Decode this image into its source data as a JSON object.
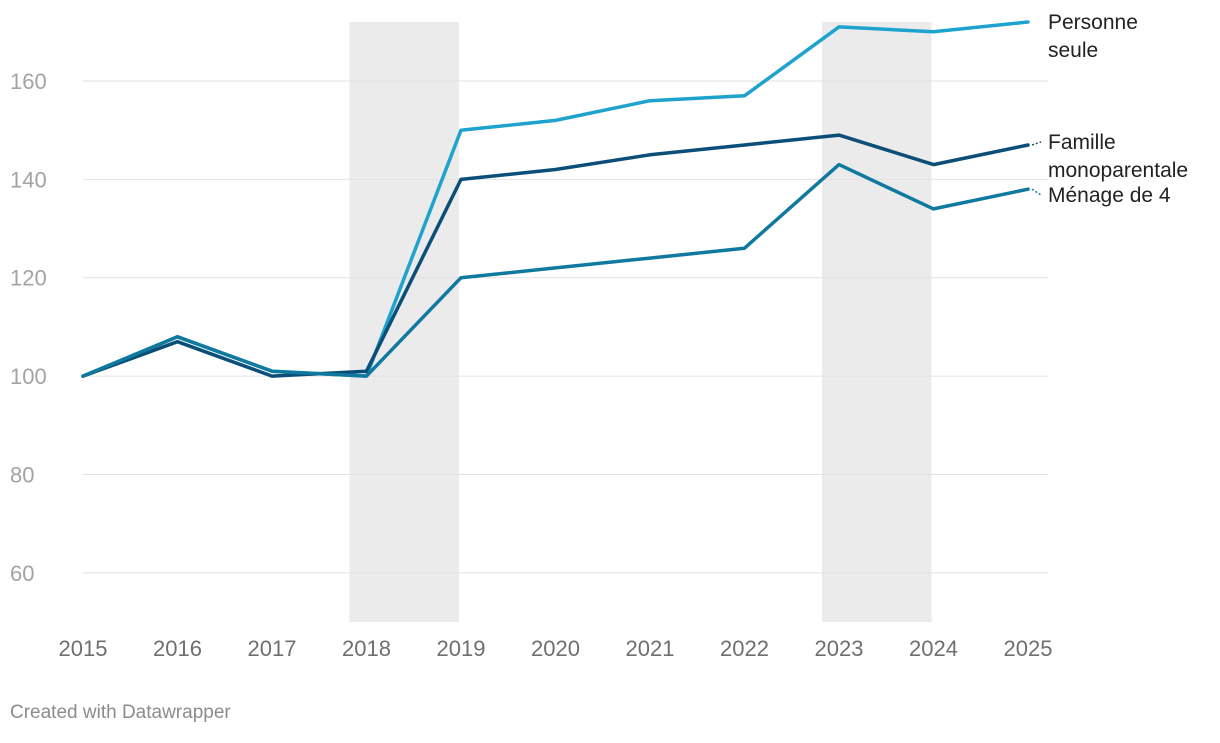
{
  "chart_data": {
    "type": "line",
    "title": "",
    "xlabel": "",
    "ylabel": "",
    "categories": [
      "2015",
      "2016",
      "2017",
      "2018",
      "2019",
      "2020",
      "2021",
      "2022",
      "2023",
      "2024",
      "2025"
    ],
    "ylim": [
      50,
      172
    ],
    "yticks": [
      60,
      80,
      100,
      120,
      140,
      160
    ],
    "grid": true,
    "shaded_ranges": [
      {
        "from": "2018",
        "to": "2019"
      },
      {
        "from": "2023",
        "to": "2024"
      }
    ],
    "series": [
      {
        "name": "Personne seule",
        "label_lines": [
          "Personne",
          "seule"
        ],
        "color": "#1ea3cf",
        "values": [
          100,
          108,
          101,
          100,
          150,
          152,
          156,
          157,
          171,
          170,
          172
        ]
      },
      {
        "name": "Famille monoparentale",
        "label_lines": [
          "Famille",
          "monoparentale"
        ],
        "color": "#0b4f79",
        "values": [
          100,
          107,
          100,
          101,
          140,
          142,
          145,
          147,
          149,
          143,
          147
        ]
      },
      {
        "name": "Ménage de 4",
        "label_lines": [
          "Ménage de 4"
        ],
        "color": "#10799f",
        "values": [
          100,
          108,
          101,
          100,
          120,
          122,
          124,
          126,
          143,
          134,
          138
        ]
      }
    ]
  },
  "footer": {
    "credit": "Created with Datawrapper"
  }
}
